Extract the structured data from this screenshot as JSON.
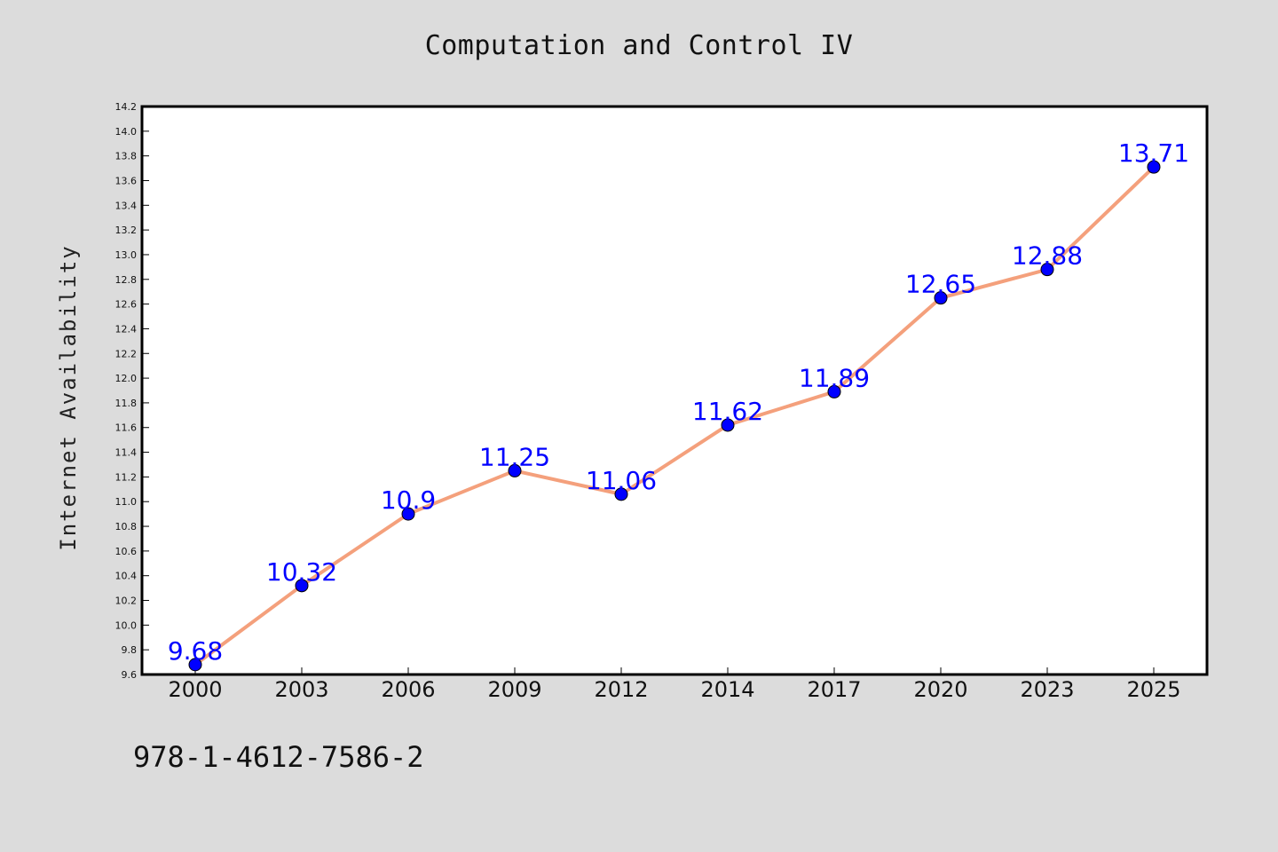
{
  "chart_data": {
    "type": "line",
    "title": "Computation and Control IV",
    "xlabel": "",
    "ylabel": "Internet Availability",
    "categories": [
      "2000",
      "2003",
      "2006",
      "2009",
      "2012",
      "2014",
      "2017",
      "2020",
      "2023",
      "2025"
    ],
    "series": [
      {
        "values": [
          9.68,
          10.32,
          10.9,
          11.25,
          11.06,
          11.62,
          11.89,
          12.65,
          12.88,
          13.71
        ],
        "labels": [
          "9.68",
          "10.32",
          "10.9",
          "11.25",
          "11.06",
          "11.62",
          "11.89",
          "12.65",
          "12.88",
          "13.71"
        ],
        "line_color": "#f4a07c",
        "marker_color": "#0000ff"
      }
    ],
    "ylim": [
      9.6,
      14.2
    ],
    "y_ticks": [
      "9.6",
      "9.8",
      "10.0",
      "10.2",
      "10.4",
      "10.6",
      "10.8",
      "11.0",
      "11.2",
      "11.4",
      "11.6",
      "11.8",
      "12.0",
      "12.2",
      "12.4",
      "12.6",
      "12.8",
      "13.0",
      "13.2",
      "13.4",
      "13.6",
      "13.8",
      "14.0",
      "14.2"
    ],
    "grid": false,
    "legend": "none"
  },
  "isbn": "978-1-4612-7586-2",
  "colors": {
    "background": "#dcdcdc",
    "plot_background": "#ffffff",
    "line": "#f4a07c",
    "marker": "#0000ff",
    "data_label": "#0000ff"
  }
}
